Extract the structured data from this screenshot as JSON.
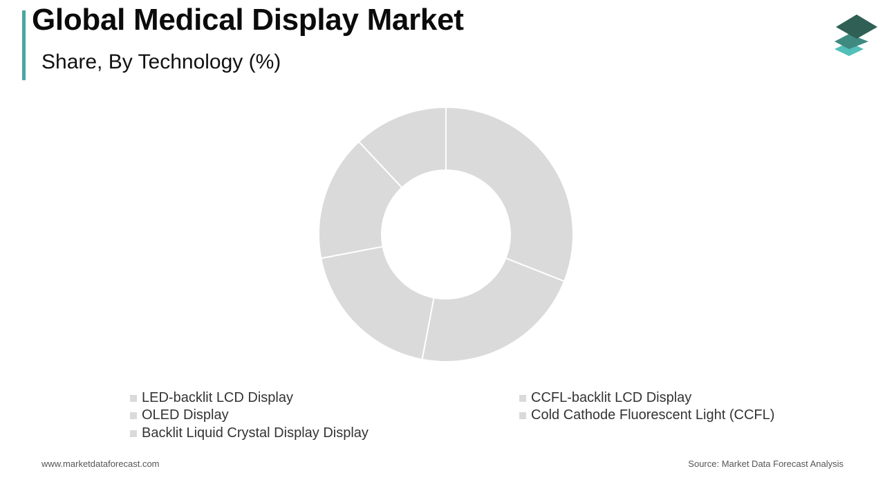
{
  "header": {
    "title": "Global Medical Display Market",
    "subtitle": "Share, By Technology (%)"
  },
  "colors": {
    "accent": "#4aa7a3",
    "slice": "#dadada",
    "slice_border": "#ffffff",
    "legend_swatch": "#dadada",
    "logo_dark": "#2f5f55",
    "logo_mid": "#3f8a80",
    "logo_light": "#52bfb8"
  },
  "logo": {
    "icon": "stacked-layers-icon"
  },
  "chart_data": {
    "type": "pie",
    "variant": "donut",
    "categories": [
      "LED-backlit LCD Display",
      "CCFL-backlit LCD Display",
      "OLED Display",
      "Cold Cathode Fluorescent Light (CCFL)",
      "Backlit Liquid Crystal Display Display"
    ],
    "values": [
      31,
      22,
      19,
      16,
      12
    ],
    "legend_placement": "bottom",
    "data_labels": false
  },
  "legend": {
    "items": [
      "LED-backlit LCD Display",
      "CCFL-backlit LCD Display",
      "OLED Display",
      "Cold Cathode Fluorescent Light (CCFL)",
      "Backlit Liquid Crystal Display Display"
    ]
  },
  "footer": {
    "website": "www.marketdataforecast.com",
    "source": "Source: Market Data Forecast Analysis"
  }
}
